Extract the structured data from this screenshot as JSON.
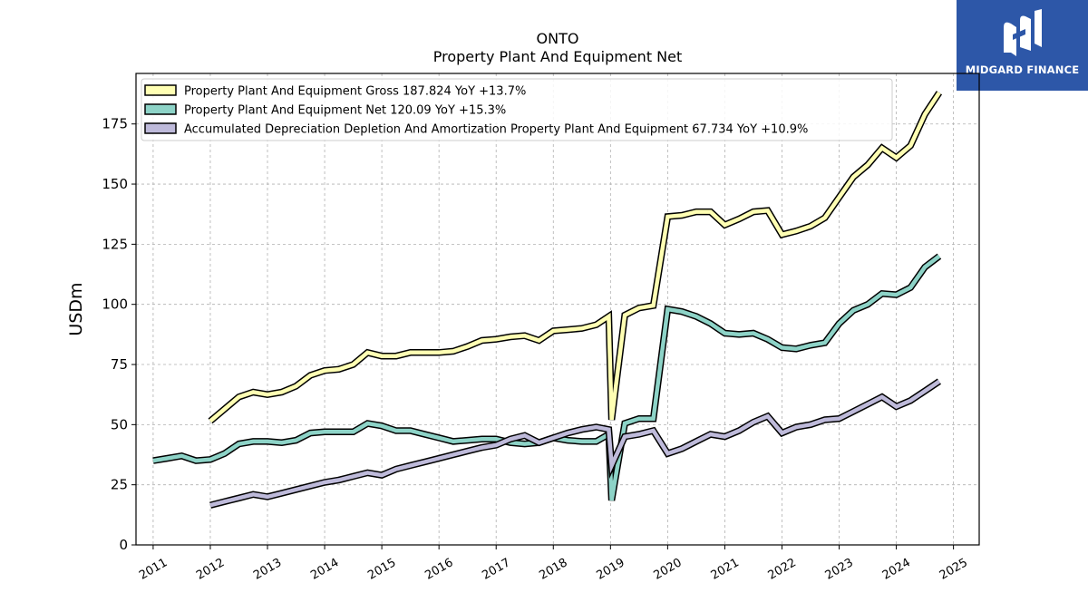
{
  "brand": {
    "name": "MIDGARD FINANCE",
    "logo_icon": "midgard-m-logo-icon",
    "background": "#2d57a8"
  },
  "chart_data": {
    "type": "line",
    "title": "ONTO",
    "subtitle": "Property Plant And Equipment Net",
    "ylabel": "USDm",
    "xlabel": "",
    "xlim": [
      2010.7,
      2025.45
    ],
    "ylim": [
      0,
      196
    ],
    "yticks": [
      0,
      25,
      50,
      75,
      100,
      125,
      150,
      175
    ],
    "xticks": [
      "2011",
      "2012",
      "2013",
      "2014",
      "2015",
      "2016",
      "2017",
      "2018",
      "2019",
      "2020",
      "2021",
      "2022",
      "2023",
      "2024",
      "2025"
    ],
    "grid": true,
    "legend_position": "top-left",
    "series": [
      {
        "name": "Property Plant And Equipment Gross",
        "legend": "Property Plant And Equipment Gross  187.824 YoY +13.7%",
        "color": "#ffffb3",
        "points": [
          [
            2012.0,
            51.5
          ],
          [
            2012.25,
            56.5
          ],
          [
            2012.5,
            61.5
          ],
          [
            2012.75,
            63.5
          ],
          [
            2013.0,
            62.5
          ],
          [
            2013.25,
            63.5
          ],
          [
            2013.5,
            66.0
          ],
          [
            2013.75,
            70.5
          ],
          [
            2014.0,
            72.5
          ],
          [
            2014.25,
            73.0
          ],
          [
            2014.5,
            75.0
          ],
          [
            2014.75,
            80.0
          ],
          [
            2015.0,
            78.5
          ],
          [
            2015.25,
            78.5
          ],
          [
            2015.5,
            80.0
          ],
          [
            2015.75,
            80.0
          ],
          [
            2016.0,
            80.0
          ],
          [
            2016.25,
            80.5
          ],
          [
            2016.5,
            82.5
          ],
          [
            2016.75,
            85.0
          ],
          [
            2017.0,
            85.5
          ],
          [
            2017.25,
            86.5
          ],
          [
            2017.5,
            87.0
          ],
          [
            2017.75,
            85.0
          ],
          [
            2018.0,
            89.0
          ],
          [
            2018.25,
            89.5
          ],
          [
            2018.5,
            90.0
          ],
          [
            2018.75,
            91.5
          ],
          [
            2018.97,
            95.0
          ],
          [
            2019.02,
            52.0
          ],
          [
            2019.25,
            95.5
          ],
          [
            2019.5,
            98.5
          ],
          [
            2019.75,
            99.5
          ],
          [
            2020.0,
            136.5
          ],
          [
            2020.25,
            137.0
          ],
          [
            2020.5,
            138.5
          ],
          [
            2020.75,
            138.5
          ],
          [
            2021.0,
            133.0
          ],
          [
            2021.25,
            135.5
          ],
          [
            2021.5,
            138.5
          ],
          [
            2021.75,
            139.0
          ],
          [
            2022.0,
            129.0
          ],
          [
            2022.25,
            130.5
          ],
          [
            2022.5,
            132.5
          ],
          [
            2022.75,
            136.0
          ],
          [
            2023.0,
            144.5
          ],
          [
            2023.25,
            153.0
          ],
          [
            2023.5,
            158.0
          ],
          [
            2023.75,
            165.0
          ],
          [
            2024.0,
            161.0
          ],
          [
            2024.25,
            166.0
          ],
          [
            2024.5,
            179.0
          ],
          [
            2024.75,
            188.0
          ]
        ]
      },
      {
        "name": "Property Plant And Equipment Net",
        "legend": "Property Plant And Equipment Net  120.09 YoY +15.3%",
        "color": "#8dd3c7",
        "points": [
          [
            2011.0,
            35.0
          ],
          [
            2011.25,
            36.0
          ],
          [
            2011.5,
            37.0
          ],
          [
            2011.75,
            35.0
          ],
          [
            2012.0,
            35.5
          ],
          [
            2012.25,
            38.0
          ],
          [
            2012.5,
            42.0
          ],
          [
            2012.75,
            43.0
          ],
          [
            2013.0,
            43.0
          ],
          [
            2013.25,
            42.5
          ],
          [
            2013.5,
            43.5
          ],
          [
            2013.75,
            46.5
          ],
          [
            2014.0,
            47.0
          ],
          [
            2014.25,
            47.0
          ],
          [
            2014.5,
            47.0
          ],
          [
            2014.75,
            50.5
          ],
          [
            2015.0,
            49.5
          ],
          [
            2015.25,
            47.5
          ],
          [
            2015.5,
            47.5
          ],
          [
            2015.75,
            46.0
          ],
          [
            2016.0,
            44.5
          ],
          [
            2016.25,
            43.0
          ],
          [
            2016.5,
            43.5
          ],
          [
            2016.75,
            44.0
          ],
          [
            2017.0,
            44.0
          ],
          [
            2017.25,
            42.5
          ],
          [
            2017.5,
            42.0
          ],
          [
            2017.75,
            42.5
          ],
          [
            2018.0,
            44.5
          ],
          [
            2018.25,
            43.5
          ],
          [
            2018.5,
            43.0
          ],
          [
            2018.75,
            43.0
          ],
          [
            2018.97,
            46.0
          ],
          [
            2019.02,
            18.5
          ],
          [
            2019.25,
            50.5
          ],
          [
            2019.5,
            52.5
          ],
          [
            2019.75,
            52.5
          ],
          [
            2020.0,
            98.0
          ],
          [
            2020.25,
            97.0
          ],
          [
            2020.5,
            95.0
          ],
          [
            2020.75,
            92.0
          ],
          [
            2021.0,
            88.0
          ],
          [
            2021.25,
            87.5
          ],
          [
            2021.5,
            88.0
          ],
          [
            2021.75,
            85.5
          ],
          [
            2022.0,
            82.0
          ],
          [
            2022.25,
            81.5
          ],
          [
            2022.5,
            83.0
          ],
          [
            2022.75,
            84.0
          ],
          [
            2023.0,
            92.0
          ],
          [
            2023.25,
            97.5
          ],
          [
            2023.5,
            100.0
          ],
          [
            2023.75,
            104.5
          ],
          [
            2024.0,
            104.0
          ],
          [
            2024.25,
            107.0
          ],
          [
            2024.5,
            115.5
          ],
          [
            2024.75,
            120.0
          ]
        ]
      },
      {
        "name": "Accumulated Depreciation Depletion And Amortization Property Plant And Equipment",
        "legend": "Accumulated Depreciation Depletion And Amortization Property Plant And Equipment  67.734 YoY +10.9%",
        "color": "#bebada",
        "points": [
          [
            2012.0,
            16.5
          ],
          [
            2012.25,
            18.0
          ],
          [
            2012.5,
            19.5
          ],
          [
            2012.75,
            21.0
          ],
          [
            2013.0,
            20.0
          ],
          [
            2013.25,
            21.5
          ],
          [
            2013.5,
            23.0
          ],
          [
            2013.75,
            24.5
          ],
          [
            2014.0,
            26.0
          ],
          [
            2014.25,
            27.0
          ],
          [
            2014.5,
            28.5
          ],
          [
            2014.75,
            30.0
          ],
          [
            2015.0,
            29.0
          ],
          [
            2015.25,
            31.5
          ],
          [
            2015.5,
            33.0
          ],
          [
            2015.75,
            34.5
          ],
          [
            2016.0,
            36.0
          ],
          [
            2016.25,
            37.5
          ],
          [
            2016.5,
            39.0
          ],
          [
            2016.75,
            40.5
          ],
          [
            2017.0,
            41.5
          ],
          [
            2017.25,
            44.0
          ],
          [
            2017.5,
            45.5
          ],
          [
            2017.75,
            42.5
          ],
          [
            2018.0,
            44.5
          ],
          [
            2018.25,
            46.5
          ],
          [
            2018.5,
            48.0
          ],
          [
            2018.75,
            49.0
          ],
          [
            2018.97,
            48.0
          ],
          [
            2019.02,
            33.0
          ],
          [
            2019.25,
            45.0
          ],
          [
            2019.5,
            46.0
          ],
          [
            2019.75,
            47.5
          ],
          [
            2020.0,
            38.0
          ],
          [
            2020.25,
            40.0
          ],
          [
            2020.5,
            43.0
          ],
          [
            2020.75,
            46.0
          ],
          [
            2021.0,
            45.0
          ],
          [
            2021.25,
            47.5
          ],
          [
            2021.5,
            51.0
          ],
          [
            2021.75,
            53.5
          ],
          [
            2022.0,
            46.5
          ],
          [
            2022.25,
            49.0
          ],
          [
            2022.5,
            50.0
          ],
          [
            2022.75,
            52.0
          ],
          [
            2023.0,
            52.5
          ],
          [
            2023.25,
            55.5
          ],
          [
            2023.5,
            58.5
          ],
          [
            2023.75,
            61.5
          ],
          [
            2024.0,
            57.5
          ],
          [
            2024.25,
            60.0
          ],
          [
            2024.5,
            64.0
          ],
          [
            2024.75,
            68.0
          ]
        ]
      }
    ]
  }
}
